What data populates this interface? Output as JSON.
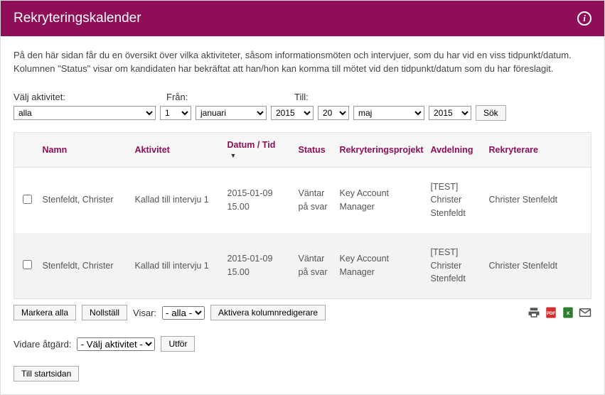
{
  "header": {
    "title": "Rekryteringskalender"
  },
  "intro": "På den här sidan får du en översikt över vilka aktiviteter, såsom informationsmöten och intervjuer, som du har vid en viss tidpunkt/datum. Kolumnen \"Status\" visar om kandidaten har bekräftat att han/hon kan komma till mötet vid den tidpunkt/datum som du har föreslagit.",
  "filters": {
    "activity_label": "Välj aktivitet:",
    "activity_value": "alla",
    "from_label": "Från:",
    "from_day": "1",
    "from_month": "januari",
    "from_year": "2015",
    "to_label": "Till:",
    "to_day": "20",
    "to_month": "maj",
    "to_year": "2015",
    "search_label": "Sök"
  },
  "table": {
    "columns": {
      "name": "Namn",
      "activity": "Aktivitet",
      "datetime": "Datum / Tid",
      "status": "Status",
      "project": "Rekryteringsprojekt",
      "department": "Avdelning",
      "recruiter": "Rekryterare"
    },
    "sort_indicator": "▼",
    "rows": [
      {
        "name": "Stenfeldt, Christer",
        "activity": "Kallad till intervju 1",
        "datetime": "2015-01-09 15.00",
        "status": "Väntar på svar",
        "project": "Key Account Manager",
        "department": "[TEST] Christer Stenfeldt",
        "recruiter": "Christer Stenfeldt"
      },
      {
        "name": "Stenfeldt, Christer",
        "activity": "Kallad till intervju 1",
        "datetime": "2015-01-09 15.00",
        "status": "Väntar på svar",
        "project": "Key Account Manager",
        "department": "[TEST] Christer Stenfeldt",
        "recruiter": "Christer Stenfeldt"
      }
    ]
  },
  "below": {
    "select_all": "Markera alla",
    "reset": "Nollställ",
    "showing_label": "Visar:",
    "showing_value": "- alla -",
    "column_editor": "Aktivera kolumnredigerare"
  },
  "action": {
    "label": "Vidare åtgärd:",
    "value": "- Välj aktivitet -",
    "execute": "Utför"
  },
  "home_button": "Till startsidan",
  "colors": {
    "brand": "#8e0f58",
    "heading_text": "#8e0f58"
  }
}
